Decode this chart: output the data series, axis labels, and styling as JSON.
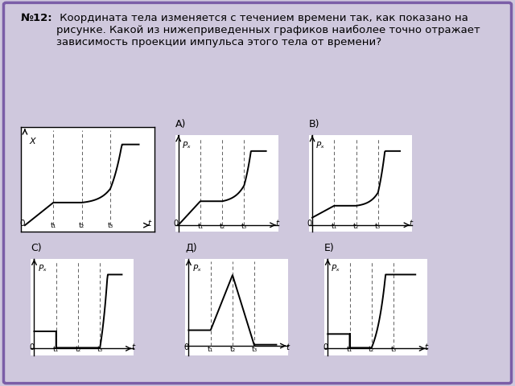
{
  "bg_color": "#cfc8dd",
  "graph_bg": "#ffffff",
  "line_color": "#000000",
  "dashed_color": "#666666",
  "border_color": "#7b5ea7",
  "title_bold": "№12:",
  "title_rest": " Координата тела изменяется с течением времени так, как показано на рисунке. Какой из нижеприведенных графиков наиболее точно отражает зависимость проекции импульса этого тела от времени?",
  "t_ticks": [
    "t₁",
    "t₂",
    "t₃"
  ],
  "t1": 1.0,
  "t2": 2.0,
  "t3": 3.0,
  "tmax": 4.2
}
